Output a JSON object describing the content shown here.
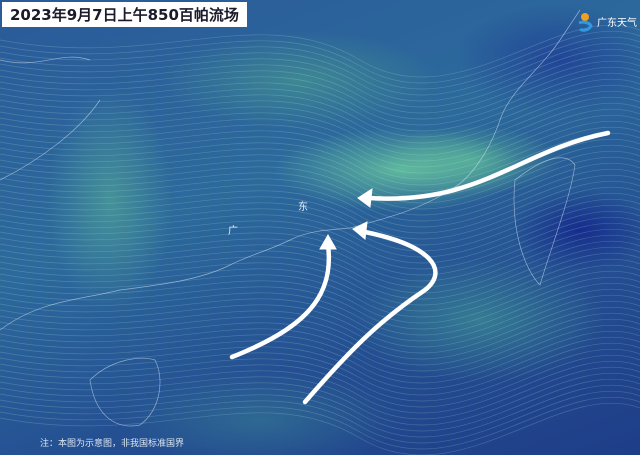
{
  "title": "2023年9月7日上午850百帕流场",
  "logo": {
    "text": "广东天气",
    "icon": "sun-wave-logo-icon"
  },
  "place_labels": [
    "广",
    "东"
  ],
  "note": "注：本图为示意图，非我国标准国界",
  "colors": {
    "arrow": "#ffffff",
    "background": "#1f3f86",
    "flow": "#6ed2a0"
  }
}
